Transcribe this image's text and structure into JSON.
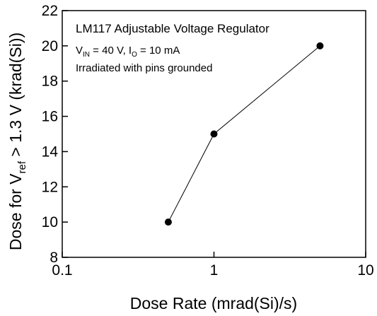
{
  "chart_data": {
    "type": "line",
    "x_label": "Dose Rate (mrad(Si)/s)",
    "y_label": [
      "Dose for V",
      "ref",
      " > 1.3 V (krad(Si))"
    ],
    "annotations": [
      [
        "LM117 Adjustable Voltage Regulator"
      ],
      [
        "V",
        "IN",
        " = 40 V, I",
        "O",
        " = 10 mA"
      ],
      [
        "Irradiated with pins grounded"
      ]
    ],
    "x": [
      0.5,
      1,
      5
    ],
    "values": [
      10,
      15,
      20
    ],
    "color": "#000000",
    "xscale": "log",
    "xlim": [
      0.1,
      10
    ],
    "xticks": [
      0.1,
      1,
      10
    ],
    "ylim": [
      8,
      22
    ],
    "yticks": [
      8,
      10,
      12,
      14,
      16,
      18,
      20,
      22
    ]
  }
}
